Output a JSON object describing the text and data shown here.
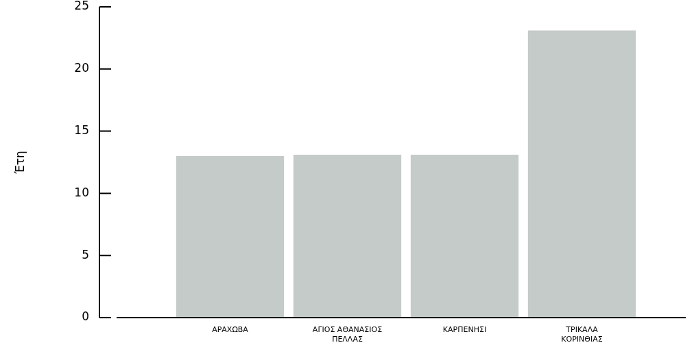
{
  "chart_data": {
    "type": "bar",
    "ylabel": "Έτη",
    "categories": [
      "ΑΡΑΧΩΒΑ",
      "ΑΓΙΟΣ ΑΘΑΝΑΣΙΟΣ ΠΕΛΛΑΣ",
      "ΚΑΡΠΕΝΗΣΙ",
      "ΤΡΙΚΑΛΑ ΚΟΡΙΝΘΙΑΣ"
    ],
    "values": [
      13.0,
      13.1,
      13.1,
      23.1
    ],
    "color": "#c5cbc9",
    "ylim": [
      0,
      25
    ],
    "yticks": [
      0,
      5,
      10,
      15,
      20,
      25
    ],
    "grid": false,
    "legend": false
  }
}
